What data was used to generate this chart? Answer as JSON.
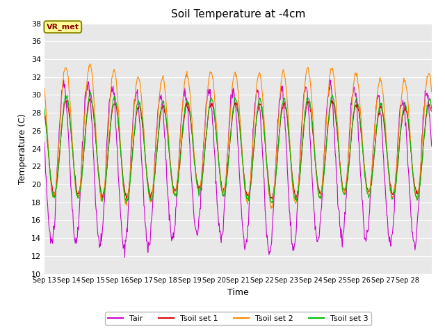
{
  "title": "Soil Temperature at -4cm",
  "xlabel": "Time",
  "ylabel": "Temperature (C)",
  "ylim": [
    10,
    38
  ],
  "yticks": [
    10,
    12,
    14,
    16,
    18,
    20,
    22,
    24,
    26,
    28,
    30,
    32,
    34,
    36,
    38
  ],
  "annotation": "VR_met",
  "plot_bg_color": "#e8e8e8",
  "fig_bg_color": "#ffffff",
  "line_colors": {
    "Tair": "#cc00cc",
    "Tsoil set 1": "#dd0000",
    "Tsoil set 2": "#ff8800",
    "Tsoil set 3": "#00bb00"
  },
  "legend_labels": [
    "Tair",
    "Tsoil set 1",
    "Tsoil set 2",
    "Tsoil set 3"
  ],
  "x_tick_labels": [
    "Sep 13",
    "Sep 14",
    "Sep 15",
    "Sep 16",
    "Sep 17",
    "Sep 18",
    "Sep 19",
    "Sep 20",
    "Sep 21",
    "Sep 22",
    "Sep 23",
    "Sep 24",
    "Sep 25",
    "Sep 26",
    "Sep 27",
    "Sep 28"
  ],
  "n_days": 16,
  "points_per_day": 48,
  "tair_base": 22.0,
  "tair_amplitude": 8.5,
  "tsoil1_base": 24.0,
  "tsoil1_amplitude": 5.0,
  "tsoil2_base": 25.5,
  "tsoil2_amplitude": 7.0,
  "tsoil3_base": 24.0,
  "tsoil3_amplitude": 5.5
}
